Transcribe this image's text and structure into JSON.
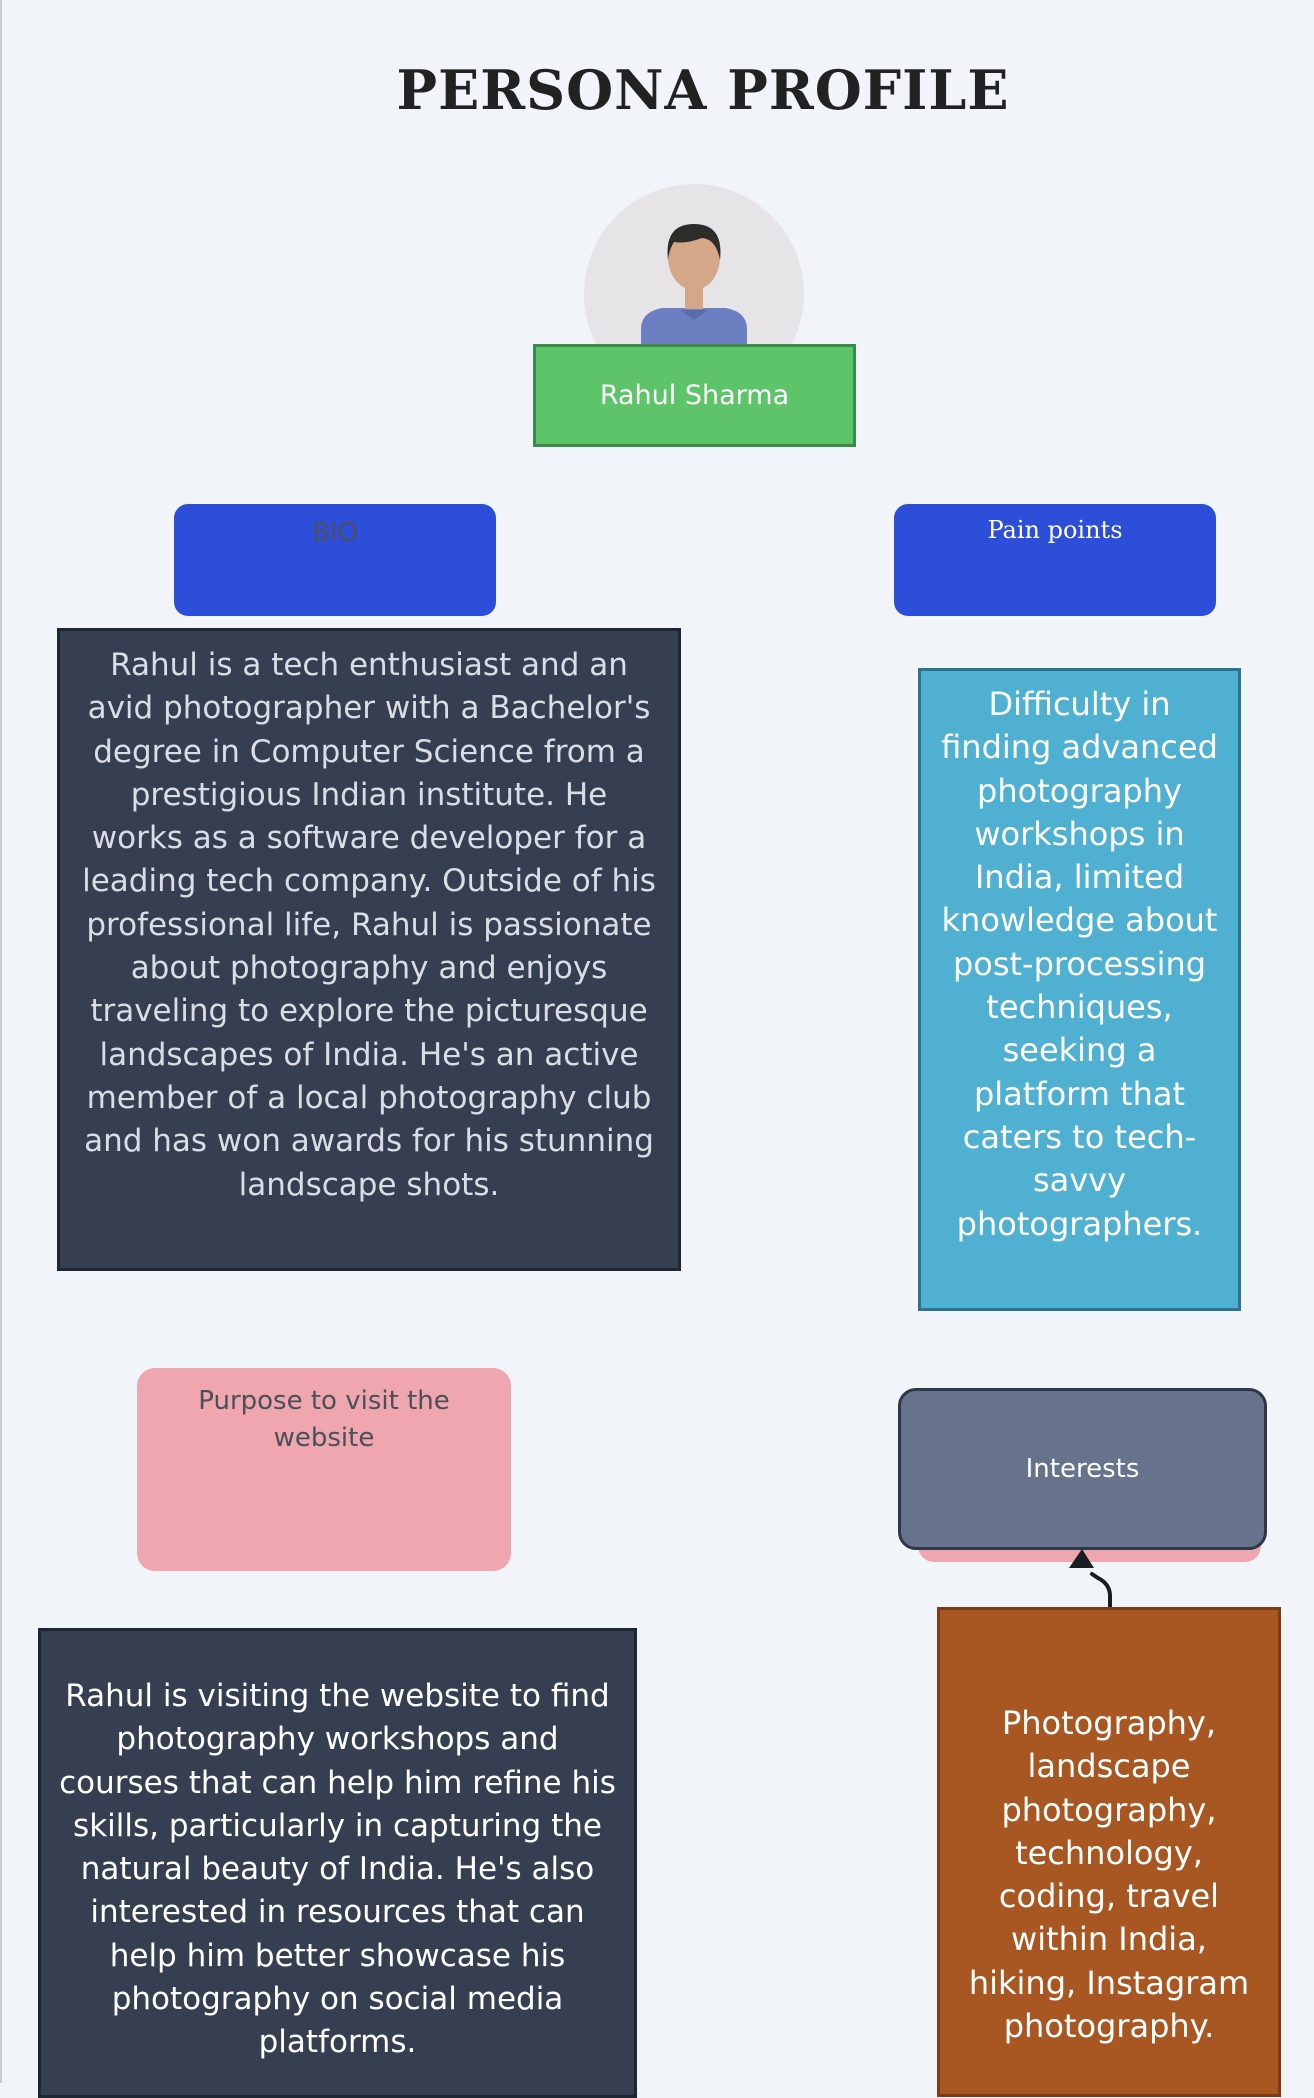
{
  "title": "PERSONA PROFILE",
  "persona": {
    "name": "Rahul Sharma"
  },
  "bio": {
    "header": "BIO",
    "body": "Rahul is a tech enthusiast and an avid photographer with a Bachelor's degree in Computer Science from a prestigious Indian institute. He works as a software developer for a leading tech company. Outside of his professional life, Rahul is passionate about photography and enjoys traveling to explore the picturesque landscapes of India. He's an active member of a local photography club and has won awards for his stunning landscape shots."
  },
  "pain_points": {
    "header": "Pain points",
    "body": "Difficulty in finding advanced photography workshops in India, limited knowledge about post-processing techniques, seeking a platform that caters to tech-savvy photographers."
  },
  "purpose": {
    "header": "Purpose to visit the website",
    "body": "Rahul is visiting the website to find photography workshops and courses that can help him refine his skills, particularly in capturing the natural beauty of India. He's also interested in resources that can help him better showcase his photography on social media platforms."
  },
  "interests": {
    "header": "Interests",
    "body": "Photography, landscape photography, technology, coding, travel within India, hiking, Instagram photography."
  },
  "colors": {
    "background": "#f1f4f9",
    "name_box": "#5ec46a",
    "section_header_blue": "#2d4ed8",
    "bio_body": "#353f51",
    "pain_body": "#4fb0d2",
    "purpose_header": "#efa6ae",
    "interests_header": "#67738c",
    "interests_body": "#a85722"
  },
  "icons": {
    "avatar": "person-avatar-icon",
    "connector": "arrow-up-icon"
  }
}
